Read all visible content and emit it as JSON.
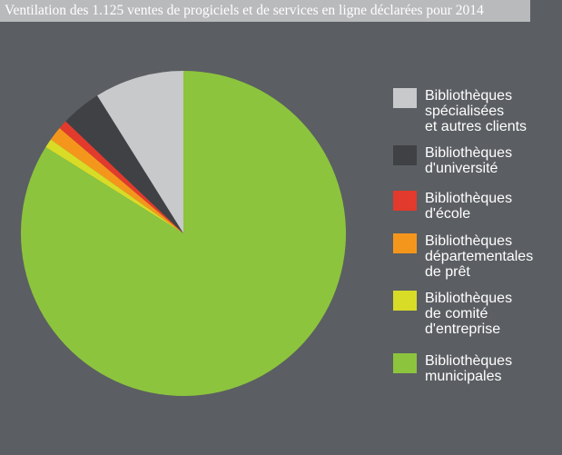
{
  "title": "Ventilation des 1.125 ventes de progiciels et de services en ligne déclarées pour 2014",
  "chart_data": {
    "type": "pie",
    "slices": [
      {
        "label": "Bibliothèques\nspécialisées\net autres clients",
        "value": 8.9,
        "color": "#c8c9cb"
      },
      {
        "label": "Bibliothèques\nd'université",
        "value": 4.0,
        "color": "#3f4144"
      },
      {
        "label": "Bibliothèques\nd'école",
        "value": 0.9,
        "color": "#e23a2c"
      },
      {
        "label": "Bibliothèques\ndépartementales\nde prêt",
        "value": 1.4,
        "color": "#f5961c"
      },
      {
        "label": "Bibliothèques\nde comité\nd'entreprise",
        "value": 0.9,
        "color": "#d8dc26"
      },
      {
        "label": "Bibliothèques\nmunicipales",
        "value": 83.9,
        "color": "#8cc43e"
      }
    ],
    "start_angle": "12 o'clock",
    "direction": "counterclockwise",
    "legend": "right"
  }
}
